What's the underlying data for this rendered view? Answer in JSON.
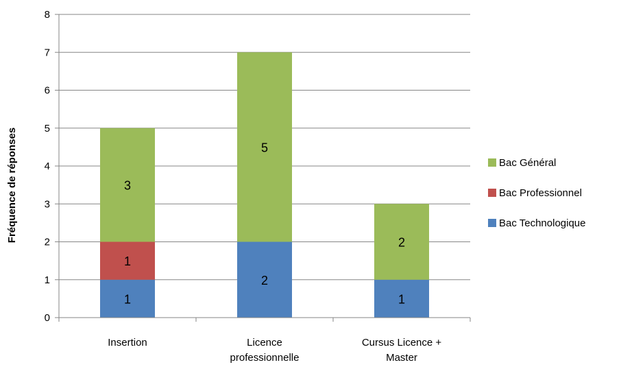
{
  "chart_data": {
    "type": "bar",
    "stacked": true,
    "title": "",
    "xlabel": "",
    "ylabel": "Fréquence de réponses",
    "ylim": [
      0,
      8
    ],
    "yticks": [
      0,
      1,
      2,
      3,
      4,
      5,
      6,
      7,
      8
    ],
    "grid": true,
    "legend_position": "right",
    "categories": [
      [
        "Insertion"
      ],
      [
        "Licence",
        "professionnelle"
      ],
      [
        "Cursus Licence +",
        "Master"
      ]
    ],
    "series": [
      {
        "name": "Bac Technologique",
        "color": "#4f81bd",
        "values": [
          1,
          2,
          1
        ]
      },
      {
        "name": "Bac Professionnel",
        "color": "#c0504d",
        "values": [
          1,
          0,
          0
        ]
      },
      {
        "name": "Bac Général",
        "color": "#9bbb59",
        "values": [
          3,
          5,
          2
        ]
      }
    ],
    "legend_order": [
      "Bac Général",
      "Bac Professionnel",
      "Bac Technologique"
    ]
  }
}
